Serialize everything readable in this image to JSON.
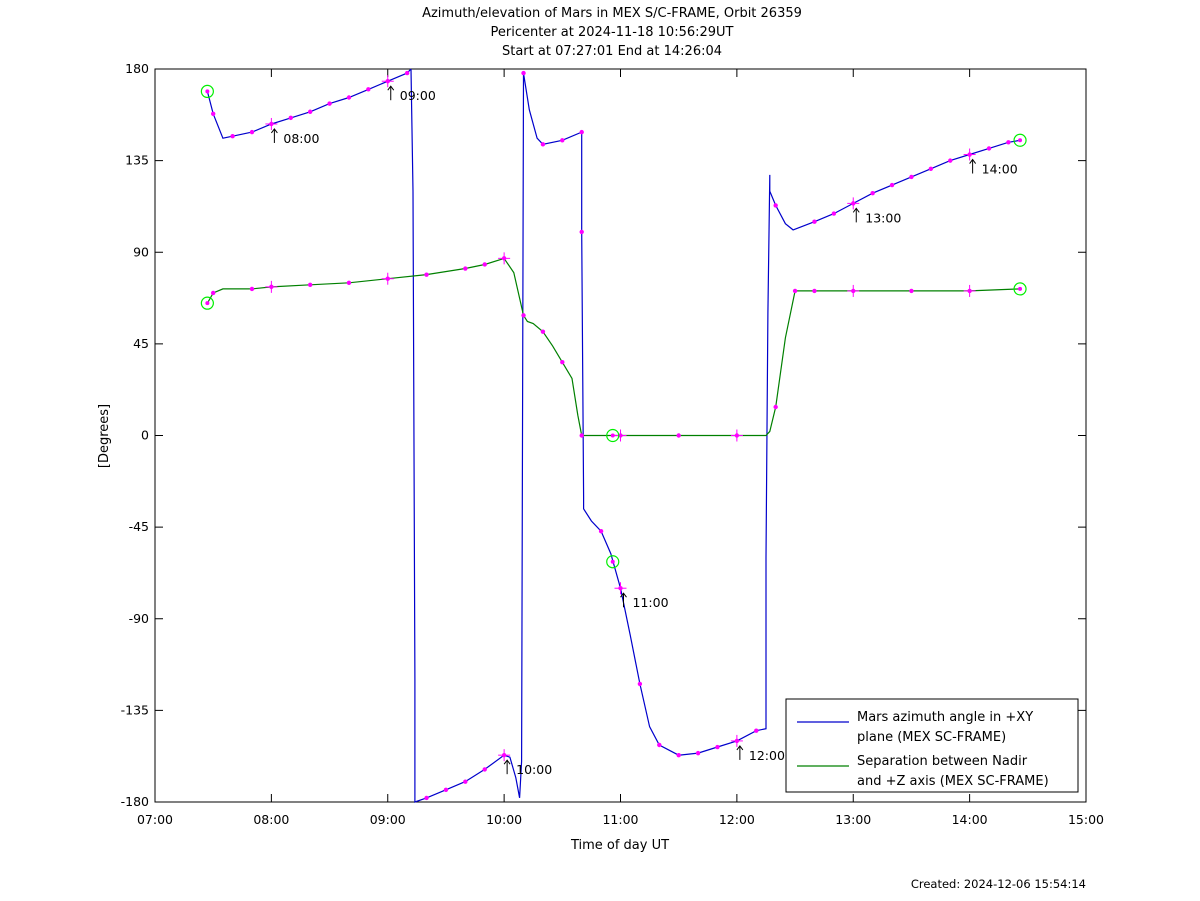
{
  "title_lines": [
    "Azimuth/elevation of Mars in MEX S/C-FRAME,  Orbit 26359",
    "Pericenter at 2024-11-18 10:56:29UT",
    "Start at 07:27:01 End at 14:26:04"
  ],
  "footer": "Created: 2024-12-06 15:54:14",
  "colors": {
    "azimuth": "#0000cc",
    "separation": "#008000",
    "marker": "#ff00ff",
    "event_circle": "#00ee00"
  },
  "chart_data": {
    "type": "line",
    "xlabel": "Time of day UT",
    "ylabel": "[Degrees]",
    "xlim": [
      "07:00",
      "15:00"
    ],
    "ylim": [
      -180,
      180
    ],
    "x_ticks": [
      "07:00",
      "08:00",
      "09:00",
      "10:00",
      "11:00",
      "12:00",
      "13:00",
      "14:00",
      "15:00"
    ],
    "y_ticks": [
      180,
      135,
      90,
      45,
      0,
      -45,
      -90,
      -135,
      -180
    ],
    "legend_position": "bottom-right",
    "series": [
      {
        "name": "Mars azimuth angle in +XY plane (MEX SC-FRAME)",
        "color": "#0000cc",
        "points": [
          [
            "07:27",
            169
          ],
          [
            "07:30",
            158
          ],
          [
            "07:35",
            146
          ],
          [
            "07:40",
            147
          ],
          [
            "07:50",
            149
          ],
          [
            "08:00",
            153
          ],
          [
            "08:10",
            156
          ],
          [
            "08:20",
            159
          ],
          [
            "08:30",
            163
          ],
          [
            "08:40",
            166
          ],
          [
            "08:50",
            170
          ],
          [
            "09:00",
            174
          ],
          [
            "09:10",
            178
          ],
          [
            "09:12",
            180
          ],
          [
            null,
            null
          ],
          [
            "09:12",
            180
          ],
          [
            "09:13",
            120
          ],
          [
            "09:14",
            -120
          ],
          [
            "09:14",
            -180
          ],
          [
            "09:20",
            -178
          ],
          [
            "09:30",
            -174
          ],
          [
            "09:40",
            -170
          ],
          [
            "09:50",
            -164
          ],
          [
            "10:00",
            -157
          ],
          [
            "10:03",
            -158
          ],
          [
            "10:06",
            -168
          ],
          [
            "10:08",
            -178
          ],
          [
            "10:09",
            -160
          ],
          [
            "10:10",
            178
          ],
          [
            "10:13",
            160
          ],
          [
            "10:17",
            146
          ],
          [
            "10:20",
            143
          ],
          [
            "10:30",
            145
          ],
          [
            "10:40",
            149
          ],
          [
            "10:40",
            100
          ],
          [
            "10:41",
            -30
          ],
          [
            "10:41",
            -36
          ],
          [
            "10:45",
            -42
          ],
          [
            "10:50",
            -47
          ],
          [
            "10:55",
            -58
          ],
          [
            "11:00",
            -75
          ],
          [
            "11:05",
            -98
          ],
          [
            "11:10",
            -122
          ],
          [
            "11:15",
            -143
          ],
          [
            "11:20",
            -152
          ],
          [
            "11:30",
            -157
          ],
          [
            "11:40",
            -156
          ],
          [
            "11:50",
            -153
          ],
          [
            "12:00",
            -150
          ],
          [
            "12:10",
            -145
          ],
          [
            "12:15",
            -144
          ],
          [
            "12:15",
            -60
          ],
          [
            "12:16",
            60
          ],
          [
            "12:17",
            128
          ],
          [
            "12:17",
            120
          ],
          [
            "12:20",
            113
          ],
          [
            "12:25",
            104
          ],
          [
            "12:29",
            101
          ],
          [
            "12:40",
            105
          ],
          [
            "12:50",
            109
          ],
          [
            "13:00",
            114
          ],
          [
            "13:10",
            119
          ],
          [
            "13:20",
            123
          ],
          [
            "13:30",
            127
          ],
          [
            "13:40",
            131
          ],
          [
            "13:50",
            135
          ],
          [
            "14:00",
            138
          ],
          [
            "14:10",
            141
          ],
          [
            "14:20",
            144
          ],
          [
            "14:26",
            145
          ]
        ]
      },
      {
        "name": "Separation between Nadir and +Z axis (MEX SC-FRAME)",
        "color": "#008000",
        "points": [
          [
            "07:27",
            65
          ],
          [
            "07:30",
            70
          ],
          [
            "07:35",
            72
          ],
          [
            "07:50",
            72
          ],
          [
            "08:00",
            73
          ],
          [
            "08:20",
            74
          ],
          [
            "08:40",
            75
          ],
          [
            "09:00",
            77
          ],
          [
            "09:20",
            79
          ],
          [
            "09:40",
            82
          ],
          [
            "09:50",
            84
          ],
          [
            "10:00",
            87
          ],
          [
            "10:05",
            80
          ],
          [
            "10:10",
            59
          ],
          [
            "10:12",
            56
          ],
          [
            "10:15",
            55
          ],
          [
            "10:20",
            51
          ],
          [
            "10:25",
            44
          ],
          [
            "10:30",
            36
          ],
          [
            "10:35",
            28
          ],
          [
            "10:38",
            10
          ],
          [
            "10:40",
            0
          ],
          [
            "11:00",
            0
          ],
          [
            "11:30",
            0
          ],
          [
            "12:00",
            0
          ],
          [
            "12:15",
            0
          ],
          [
            "12:17",
            2
          ],
          [
            "12:20",
            14
          ],
          [
            "12:25",
            48
          ],
          [
            "12:30",
            71
          ],
          [
            "12:40",
            71
          ],
          [
            "13:00",
            71
          ],
          [
            "13:30",
            71
          ],
          [
            "14:00",
            71
          ],
          [
            "14:26",
            72
          ]
        ]
      }
    ],
    "legend": [
      {
        "text_lines": [
          "Mars azimuth angle in +XY",
          "plane (MEX SC-FRAME)"
        ],
        "color": "#0000cc"
      },
      {
        "text_lines": [
          "Separation between Nadir",
          "and +Z axis (MEX SC-FRAME)"
        ],
        "color": "#008000"
      }
    ],
    "hour_labels": [
      {
        "text": "08:00",
        "t": "08:00",
        "y": 153
      },
      {
        "text": "09:00",
        "t": "09:00",
        "y": 174
      },
      {
        "text": "10:00",
        "t": "10:00",
        "y": -157
      },
      {
        "text": "11:00",
        "t": "11:00",
        "y": -75
      },
      {
        "text": "12:00",
        "t": "12:00",
        "y": -150
      },
      {
        "text": "13:00",
        "t": "13:00",
        "y": 114
      },
      {
        "text": "14:00",
        "t": "14:00",
        "y": 138
      }
    ],
    "event_circles": [
      {
        "t": "07:27",
        "y": 169
      },
      {
        "t": "07:27",
        "y": 65
      },
      {
        "t": "10:56",
        "y": 0
      },
      {
        "t": "10:56",
        "y": -62
      },
      {
        "t": "14:26",
        "y": 145
      },
      {
        "t": "14:26",
        "y": 72
      }
    ]
  }
}
